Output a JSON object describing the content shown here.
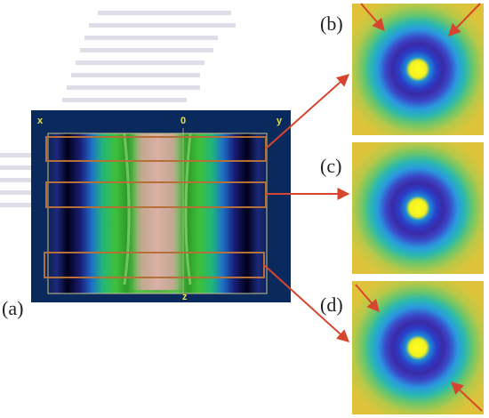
{
  "panels": {
    "a": "(a)",
    "b": "(b)",
    "c": "(c)",
    "d": "(d)"
  },
  "axes": {
    "x": "x",
    "origin": "0",
    "y": "y",
    "z": "z"
  },
  "colors": {
    "frame_bg": "#0a2a5e",
    "frame_border": "#c9c48a",
    "arrow": "#d8452e",
    "box": "#b5703a",
    "ring_outer": "#d9c43a",
    "ring_dark": "#3b2aa8",
    "core": "#ffff20"
  }
}
